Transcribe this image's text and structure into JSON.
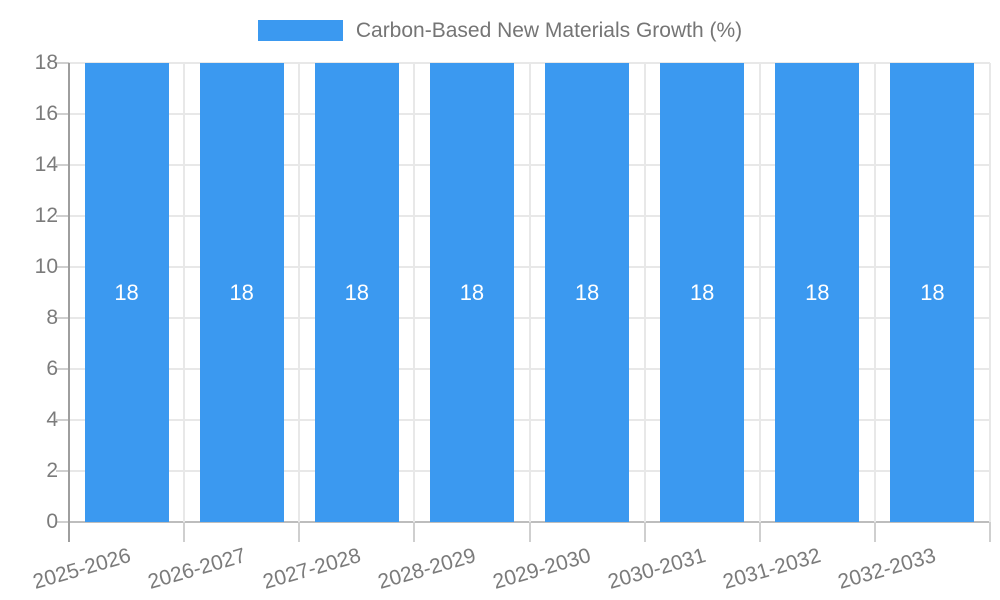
{
  "chart_data": {
    "type": "bar",
    "title": "Carbon-Based New Materials Growth (%)",
    "categories": [
      "2025-2026",
      "2026-2027",
      "2027-2028",
      "2028-2029",
      "2029-2030",
      "2030-2031",
      "2031-2032",
      "2032-2033"
    ],
    "values": [
      18,
      18,
      18,
      18,
      18,
      18,
      18,
      18
    ],
    "data_labels": [
      "18",
      "18",
      "18",
      "18",
      "18",
      "18",
      "18",
      "18"
    ],
    "xlabel": "",
    "ylabel": "",
    "ylim": [
      0,
      18
    ],
    "yticks": [
      0,
      2,
      4,
      6,
      8,
      10,
      12,
      14,
      16,
      18
    ],
    "grid": true,
    "legend_position": "top-center",
    "colors": {
      "bar": "#3b99f0",
      "data_label": "#ffffff",
      "title_text": "#757575",
      "axis_text": "#7b7b7b",
      "gridline": "#e8e8e8",
      "axis_line": "#9e9e9e",
      "baseline": "#bdbdbd",
      "tick": "#cfcfcf"
    }
  }
}
